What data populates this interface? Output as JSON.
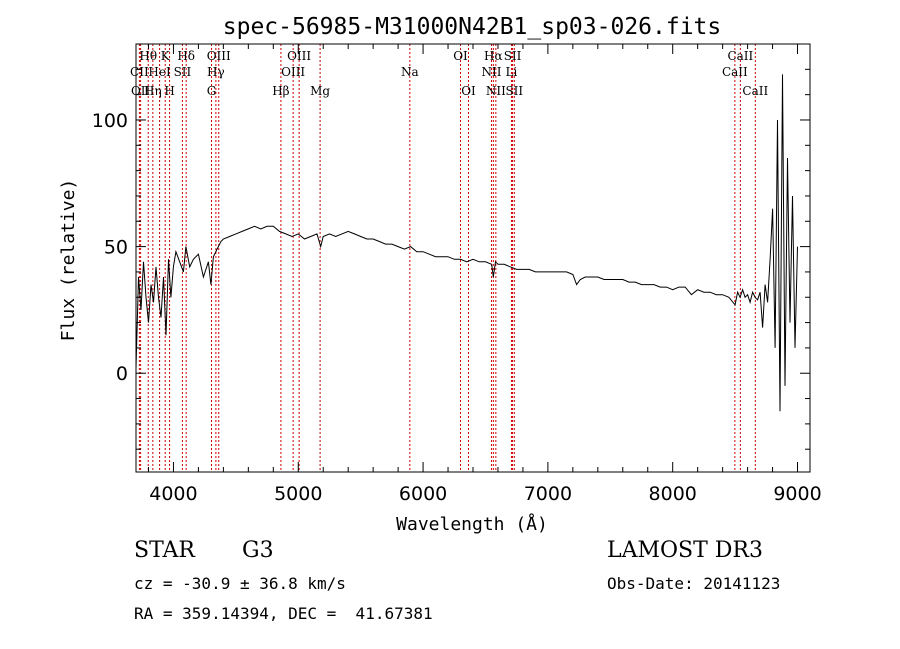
{
  "chart_data": {
    "type": "line",
    "title": "spec-56985-M31000N42B1_sp03-026.fits",
    "xlabel": "Wavelength (Å)",
    "ylabel": "Flux (relative)",
    "xlim": [
      3700,
      9100
    ],
    "ylim": [
      -39,
      130
    ],
    "xticks": [
      4000,
      5000,
      6000,
      7000,
      8000,
      9000
    ],
    "yticks": [
      0,
      50,
      100
    ],
    "spectral_lines": [
      {
        "name": "Hθ",
        "wavelength": 3798,
        "row": 0
      },
      {
        "name": "CII",
        "wavelength": 3727,
        "row": 1
      },
      {
        "name": "OII",
        "wavelength": 3737,
        "row": 2
      },
      {
        "name": "K",
        "wavelength": 3934,
        "row": 0
      },
      {
        "name": "HeI",
        "wavelength": 3889,
        "row": 1
      },
      {
        "name": "Hη",
        "wavelength": 3835,
        "row": 2
      },
      {
        "name": "Hδ",
        "wavelength": 4102,
        "row": 0
      },
      {
        "name": "SII",
        "wavelength": 4072,
        "row": 1
      },
      {
        "name": "H",
        "wavelength": 3969,
        "row": 2
      },
      {
        "name": "OIII",
        "wavelength": 4363,
        "row": 0
      },
      {
        "name": "Hγ",
        "wavelength": 4340,
        "row": 1
      },
      {
        "name": "G",
        "wavelength": 4305,
        "row": 2
      },
      {
        "name": "OIII",
        "wavelength": 5007,
        "row": 0
      },
      {
        "name": "OIII",
        "wavelength": 4959,
        "row": 1
      },
      {
        "name": "Hβ",
        "wavelength": 4861,
        "row": 2
      },
      {
        "name": "Mg",
        "wavelength": 5175,
        "row": 2
      },
      {
        "name": "Na",
        "wavelength": 5894,
        "row": 1
      },
      {
        "name": "OI",
        "wavelength": 6300,
        "row": 0
      },
      {
        "name": "OI",
        "wavelength": 6364,
        "row": 2
      },
      {
        "name": "Hα",
        "wavelength": 6563,
        "row": 0
      },
      {
        "name": "NII",
        "wavelength": 6548,
        "row": 1
      },
      {
        "name": "NII",
        "wavelength": 6583,
        "row": 2
      },
      {
        "name": "SII",
        "wavelength": 6717,
        "row": 0
      },
      {
        "name": "Li",
        "wavelength": 6708,
        "row": 1
      },
      {
        "name": "SII",
        "wavelength": 6731,
        "row": 2
      },
      {
        "name": "CaII",
        "wavelength": 8542,
        "row": 0
      },
      {
        "name": "CaII",
        "wavelength": 8498,
        "row": 1
      },
      {
        "name": "CaII",
        "wavelength": 8662,
        "row": 2
      }
    ],
    "series": [
      {
        "name": "flux",
        "x": [
          3700,
          3720,
          3740,
          3760,
          3780,
          3800,
          3820,
          3840,
          3860,
          3880,
          3900,
          3920,
          3940,
          3960,
          3980,
          4000,
          4020,
          4050,
          4080,
          4100,
          4130,
          4160,
          4200,
          4240,
          4280,
          4300,
          4320,
          4350,
          4380,
          4400,
          4450,
          4500,
          4550,
          4600,
          4650,
          4700,
          4750,
          4800,
          4850,
          4900,
          4950,
          5000,
          5050,
          5100,
          5150,
          5180,
          5200,
          5250,
          5300,
          5350,
          5400,
          5450,
          5500,
          5550,
          5600,
          5650,
          5700,
          5750,
          5800,
          5850,
          5900,
          5950,
          6000,
          6050,
          6100,
          6150,
          6200,
          6250,
          6300,
          6350,
          6400,
          6450,
          6500,
          6550,
          6563,
          6580,
          6600,
          6650,
          6700,
          6750,
          6800,
          6850,
          6900,
          6950,
          7000,
          7050,
          7100,
          7150,
          7200,
          7230,
          7260,
          7300,
          7350,
          7400,
          7450,
          7500,
          7550,
          7600,
          7650,
          7700,
          7750,
          7800,
          7850,
          7900,
          7950,
          8000,
          8050,
          8100,
          8150,
          8200,
          8250,
          8300,
          8350,
          8400,
          8450,
          8500,
          8520,
          8540,
          8560,
          8580,
          8600,
          8620,
          8640,
          8660,
          8680,
          8700,
          8720,
          8740,
          8760,
          8780,
          8800,
          8820,
          8840,
          8860,
          8880,
          8900,
          8920,
          8940,
          8960,
          8980,
          9000
        ],
        "y": [
          2,
          38,
          25,
          44,
          30,
          20,
          35,
          28,
          42,
          30,
          22,
          38,
          15,
          45,
          30,
          42,
          48,
          44,
          40,
          50,
          42,
          45,
          47,
          38,
          44,
          35,
          46,
          49,
          52,
          53,
          54,
          55,
          56,
          57,
          58,
          57,
          58,
          58,
          56,
          55,
          54,
          55,
          53,
          54,
          55,
          50,
          54,
          55,
          54,
          55,
          56,
          55,
          54,
          53,
          53,
          52,
          51,
          51,
          50,
          49,
          50,
          48,
          48,
          47,
          46,
          46,
          46,
          45,
          45,
          44,
          45,
          44,
          44,
          43,
          38,
          44,
          43,
          43,
          42,
          41,
          41,
          41,
          40,
          40,
          40,
          40,
          40,
          40,
          39,
          35,
          37,
          38,
          38,
          38,
          37,
          37,
          37,
          37,
          36,
          36,
          35,
          35,
          35,
          34,
          34,
          33,
          34,
          34,
          31,
          33,
          32,
          32,
          31,
          31,
          30,
          27,
          32,
          30,
          33,
          30,
          31,
          28,
          32,
          30,
          29,
          32,
          18,
          35,
          28,
          45,
          65,
          10,
          100,
          -15,
          118,
          -5,
          85,
          20,
          70,
          10,
          50
        ]
      }
    ]
  },
  "info": {
    "class_label": "STAR",
    "subclass": "G3",
    "survey": "LAMOST DR3",
    "redshift": "cz = -30.9 ± 36.8 km/s",
    "obs_date": "Obs-Date: 20141123",
    "coords": "RA = 359.14394, DEC =  41.67381"
  },
  "colors": {
    "line": "#000000",
    "marker": "#cc0000",
    "axes": "#000000"
  }
}
